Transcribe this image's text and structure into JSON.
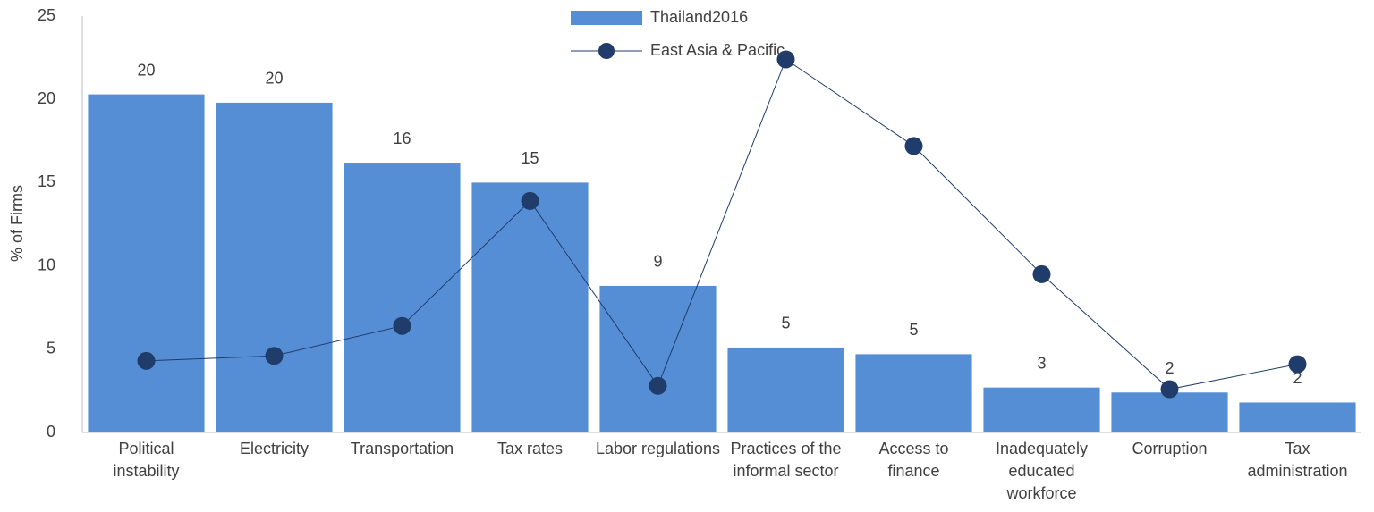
{
  "chart_data": {
    "type": "bar_line",
    "y_axis_label": "% of Firms",
    "categories": [
      "Political instability",
      "Electricity",
      "Transportation",
      "Tax rates",
      "Labor regulations",
      "Practices of the informal sector",
      "Access to finance",
      "Inadequately educated workforce",
      "Corruption",
      "Tax administration"
    ],
    "series": [
      {
        "name": "Thailand2016",
        "type": "bar",
        "color": "#558ed5",
        "values": [
          20.3,
          19.8,
          16.2,
          15.0,
          8.8,
          5.1,
          4.7,
          2.7,
          2.4,
          1.8
        ],
        "value_labels": [
          "20",
          "20",
          "16",
          "15",
          "9",
          "5",
          "5",
          "3",
          "2",
          "2"
        ]
      },
      {
        "name": "East Asia & Pacific",
        "type": "line",
        "color": "#1f3c6b",
        "values": [
          4.3,
          4.6,
          6.4,
          13.9,
          2.8,
          22.4,
          17.2,
          9.5,
          2.6,
          4.1
        ]
      }
    ],
    "ylim": [
      0,
      25
    ],
    "yticks": [
      0,
      5,
      10,
      15,
      20,
      25
    ],
    "grid": false
  }
}
